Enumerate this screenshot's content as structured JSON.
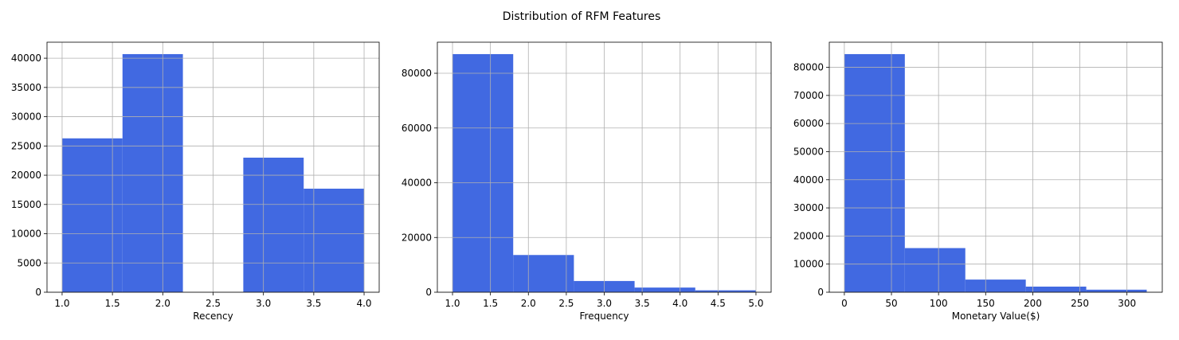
{
  "title": "Distribution of RFM Features",
  "chart_data": [
    {
      "type": "histogram",
      "xlabel": "Recency",
      "color": "#4169e1",
      "grid": true,
      "bins": [
        1.0,
        1.6,
        2.2,
        2.8,
        3.4,
        4.0
      ],
      "values": [
        26300,
        40700,
        0,
        23000,
        17700
      ],
      "xlim": [
        0.85,
        4.15
      ],
      "xticks": [
        {
          "value": 1,
          "label": "1.0"
        },
        1.5,
        {
          "value": 2,
          "label": "2.0"
        },
        2.5,
        {
          "value": 3,
          "label": "3.0"
        },
        3.5,
        {
          "value": 4,
          "label": "4.0"
        }
      ],
      "ylim": [
        0,
        42735
      ],
      "yticks": [
        0,
        5000,
        10000,
        15000,
        20000,
        25000,
        30000,
        35000,
        40000
      ]
    },
    {
      "type": "histogram",
      "xlabel": "Frequency",
      "color": "#4169e1",
      "grid": true,
      "bins": [
        1.0,
        1.8,
        2.6,
        3.4,
        4.2,
        5.0
      ],
      "values": [
        87000,
        13600,
        4100,
        1700,
        700
      ],
      "xlim": [
        0.8,
        5.2
      ],
      "xticks": [
        {
          "value": 1,
          "label": "1.0"
        },
        1.5,
        {
          "value": 2,
          "label": "2.0"
        },
        2.5,
        {
          "value": 3,
          "label": "3.0"
        },
        3.5,
        {
          "value": 4,
          "label": "4.0"
        },
        4.5,
        {
          "value": 5,
          "label": "5.0"
        }
      ],
      "ylim": [
        0,
        91350
      ],
      "yticks": [
        0,
        20000,
        40000,
        60000,
        80000
      ]
    },
    {
      "type": "histogram",
      "xlabel": "Monetary Value($)",
      "color": "#4169e1",
      "grid": true,
      "bins": [
        0,
        64.2,
        128.4,
        192.6,
        256.8,
        321
      ],
      "values": [
        84700,
        15700,
        4500,
        2000,
        900
      ],
      "xlim": [
        -16,
        337.5
      ],
      "xticks": [
        0,
        50,
        100,
        150,
        200,
        250,
        300
      ],
      "ylim": [
        0,
        88935
      ],
      "yticks": [
        0,
        10000,
        20000,
        30000,
        40000,
        50000,
        60000,
        70000,
        80000
      ]
    }
  ]
}
